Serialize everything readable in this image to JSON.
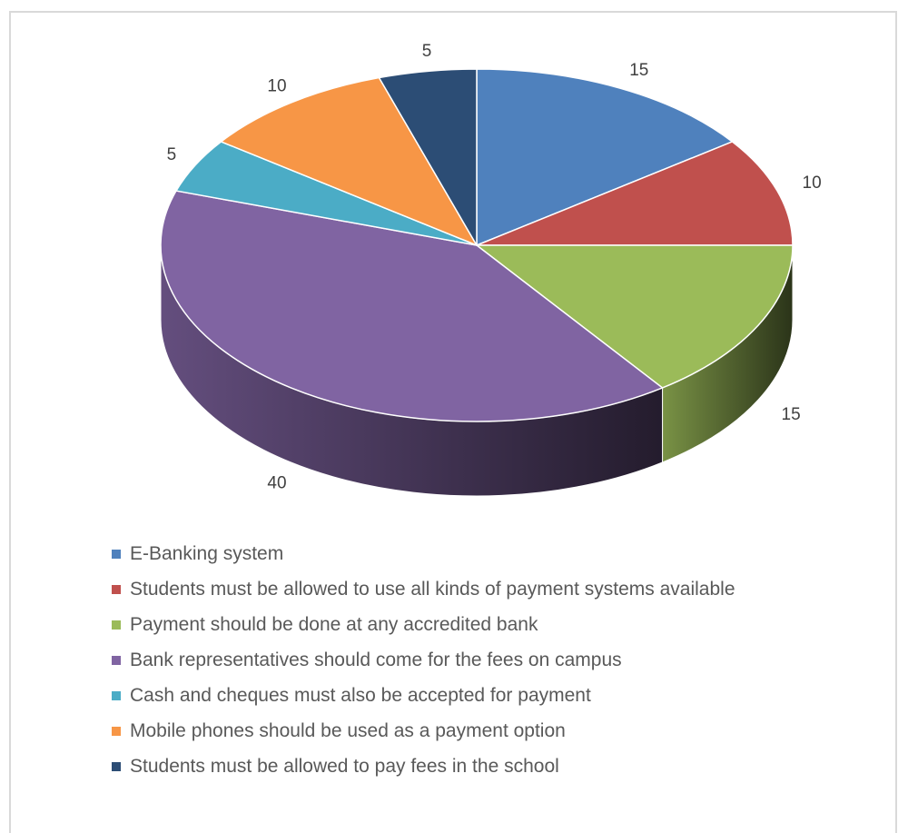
{
  "chart_data": {
    "type": "pie",
    "categories": [
      "E-Banking system",
      "Students must be allowed to use all kinds of payment systems available",
      "Payment should be done at any accredited bank",
      "Bank representatives should come for the fees on campus",
      "Cash and cheques must also be accepted for payment",
      "Mobile phones should be used as a payment option",
      "Students must be allowed to pay fees in the school"
    ],
    "values": [
      15,
      10,
      15,
      40,
      5,
      10,
      5
    ],
    "colors": [
      "#4f81bd",
      "#c0504d",
      "#9bbb59",
      "#8064a2",
      "#4bacc6",
      "#f79646",
      "#2c4d75"
    ],
    "data_labels": [
      "15",
      "10",
      "15",
      "40",
      "5",
      "10",
      "5"
    ],
    "legend_position": "bottom",
    "style": "3d"
  }
}
